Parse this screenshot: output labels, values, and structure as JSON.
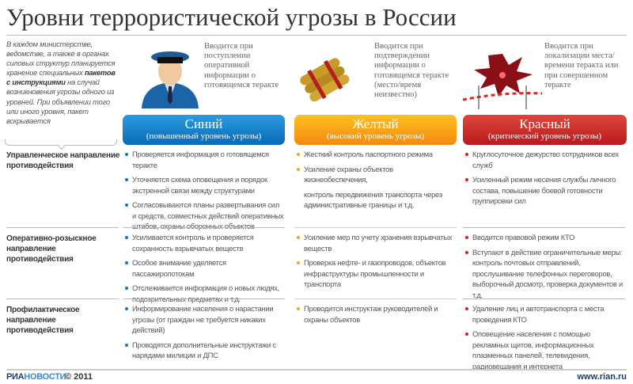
{
  "title": "Уровни террористической угрозы в России",
  "intro": {
    "part1": "В каждом министерстве, ведомстве, а также в органах силовых структур планируется хранение специальных ",
    "bold": "пакетов с инструкциями",
    "part2": " на случай возникновения угрозы одного из уровней. При объявлении того или иного уровня, пакет вскрывается"
  },
  "levels": [
    {
      "name": "Синий",
      "subtitle": "(повышенный уровень угрозы)",
      "description": "Вводится при поступлении оперативной информации о готовящемся теракте",
      "color": "#0f74c2",
      "icon": "police-officer-icon"
    },
    {
      "name": "Желтый",
      "subtitle": "(высокий уровень угрозы)",
      "description": "Вводится при подтверждении информации о готовящемся теракте (место/время неизвестно)",
      "color": "#f5a41a",
      "icon": "dynamite-icon"
    },
    {
      "name": "Красный",
      "subtitle": "(критический уровень угрозы)",
      "description": "Вводится при локализации места/времени теракта или при совершенном теракте",
      "color": "#c8252a",
      "icon": "explosion-cordon-icon"
    }
  ],
  "rows": [
    {
      "label": "Управленческое направление противодействия",
      "cells": [
        [
          "Проверяется информация о готовящемся теракте",
          "Уточняется схема оповещения и порядок экстренной связи между структурами",
          "Согласовываются планы развертывания сил и средств, совместных действий оперативных штабов, охраны оборонных объектов"
        ],
        [
          "Жесткий контроль паспортного режима",
          "Усиление охраны объектов жизнеобеспечения,"
        ],
        [
          "Круглосуточное дежурство сотрудников всех служб",
          "Усиленный режим несения службы личного состава, повышение боевой готовности группировки сил"
        ]
      ],
      "yellow_continuation": "контроль передвижения транспорта через административные границы и т.д."
    },
    {
      "label": "Оперативно-розыскное направление противодействия",
      "cells": [
        [
          "Усиливается контроль и проверяется сохранность взрывчатых веществ",
          "Особое внимание уделяется пассажиропотокам",
          "Отслеживается информация о новых людях, подозрительных предметах и т.д."
        ],
        [
          "Усиление мер по учету хранения взрывчатых веществ",
          "Проверка нефте- и газопроводов, объектов инфраструктуры промышленности и транспорта"
        ],
        [
          "Вводится правовой режим КТО",
          "Вступают в действие ограничительные меры: контроль почтовых отправлений, прослушивание телефонных переговоров, выборочный досмотр, проверка документов и т.д."
        ]
      ]
    },
    {
      "label": "Профилактическое направление противодействия",
      "cells": [
        [
          "Информирование населения о нарастании угрозы (от граждан не требуется никаких действий)",
          "Проводятся дополнительные инструктажи с нарядами милиции и ДПС"
        ],
        [
          "Проводится инструктаж руководителей и охраны объектов"
        ],
        [
          "Удаление лиц и автотранспорта с места проведения КТО",
          "Оповещение населения с помощью рекламных щитов, информационных плазменных панелей, телевидения, радиовещания и интернета"
        ]
      ]
    }
  ],
  "footer": {
    "logo_a": "РИА",
    "logo_b": "НОВОСТИ",
    "copyright": "© 2011",
    "site": "www.rian.ru"
  }
}
